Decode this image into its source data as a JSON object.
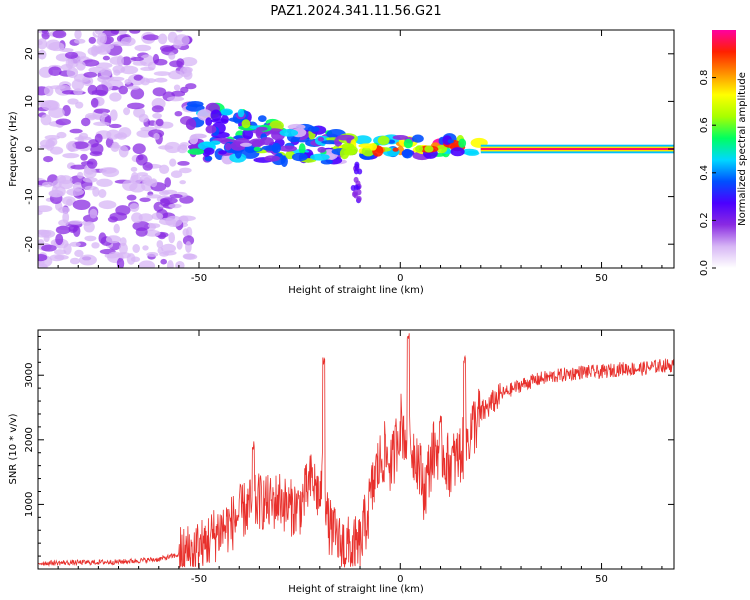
{
  "title": "PAZ1.2024.341.11.56.G21",
  "chart_data": [
    {
      "type": "heatmap",
      "title": "PAZ1.2024.341.11.56.G21",
      "xlabel": "Height of straight line (km)",
      "ylabel": "Frequency (Hz)",
      "xlim": [
        -90,
        68
      ],
      "ylim": [
        -25,
        25
      ],
      "xticks": [
        -50,
        0,
        50
      ],
      "yticks": [
        -20,
        -10,
        0,
        10,
        20
      ],
      "colorbar": {
        "label": "Normalized spectral amplitude",
        "range": [
          0,
          1
        ],
        "ticks": [
          "0.0",
          "0.2",
          "0.4",
          "0.6",
          "0.8"
        ],
        "colors": [
          "#ffffff",
          "#d7b6f5",
          "#8a2be2",
          "#4b00ff",
          "#0050ff",
          "#00d8ff",
          "#00ff60",
          "#a8ff00",
          "#ffff00",
          "#ff9000",
          "#ff2000",
          "#ff00a0"
        ]
      },
      "description_features": [
        {
          "x_from": -90,
          "x_to": -52,
          "freq_spread": 25,
          "amplitude": 0.15
        },
        {
          "x_from": -52,
          "x_to": -15,
          "freq_center": 2,
          "freq_spread": 6,
          "amplitude": 0.35
        },
        {
          "x_from": -15,
          "x_to": 20,
          "freq_center": 0.5,
          "freq_spread": 2,
          "amplitude": 0.55
        },
        {
          "x_from": 20,
          "x_to": 68,
          "freq_center": 0,
          "freq_spread": 0.6,
          "amplitude": 1.0
        }
      ]
    },
    {
      "type": "line",
      "xlabel": "Height of straight line (km)",
      "ylabel": "SNR (10 * v/v)",
      "xlim": [
        -90,
        68
      ],
      "ylim": [
        0,
        3700
      ],
      "xticks": [
        -50,
        0,
        50
      ],
      "yticks": [
        1000,
        2000,
        3000
      ],
      "color": "#e8302c",
      "x": [
        -90,
        -80,
        -70,
        -60,
        -55,
        -50,
        -47,
        -45,
        -42,
        -40,
        -38,
        -35,
        -32,
        -30,
        -28,
        -25,
        -22,
        -20,
        -19,
        -18,
        -17,
        -15,
        -12,
        -10,
        -8,
        -6,
        -4,
        -2,
        0,
        2,
        4,
        6,
        8,
        10,
        12,
        14,
        16,
        18,
        20,
        25,
        30,
        35,
        40,
        45,
        50,
        55,
        60,
        65,
        68
      ],
      "values": [
        90,
        100,
        110,
        150,
        220,
        320,
        480,
        600,
        700,
        850,
        950,
        1050,
        1000,
        1100,
        950,
        950,
        1400,
        1100,
        1500,
        700,
        600,
        400,
        300,
        350,
        900,
        1500,
        1800,
        1600,
        2300,
        1900,
        1800,
        1200,
        1800,
        1900,
        1600,
        1700,
        1900,
        2200,
        2400,
        2700,
        2850,
        2950,
        3000,
        3050,
        3050,
        3100,
        3100,
        3150,
        3150
      ],
      "peaks": [
        {
          "x": -36.5,
          "y": 2000
        },
        {
          "x": -19,
          "y": 3300
        },
        {
          "x": 2,
          "y": 3650
        },
        {
          "x": 16,
          "y": 3300
        }
      ]
    }
  ]
}
